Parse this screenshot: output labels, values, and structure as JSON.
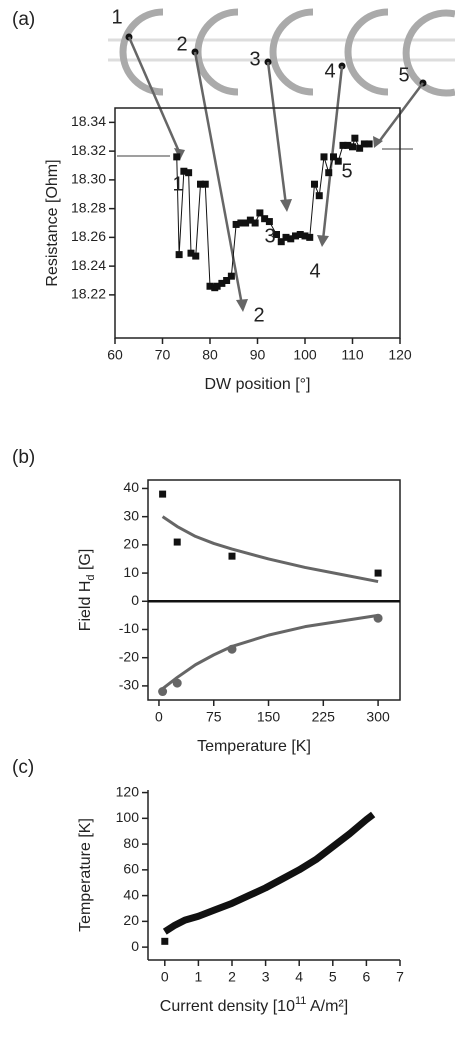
{
  "chart_data": [
    {
      "type": "scatter",
      "panel_label": "(a)",
      "xlabel": "DW position [°]",
      "ylabel": "Resistance [Ohm]",
      "xlim": [
        60,
        120
      ],
      "ylim": [
        18.19,
        18.35
      ],
      "box": true,
      "xticks": [
        60,
        70,
        80,
        90,
        100,
        110,
        120
      ],
      "yticks": [
        18.22,
        18.24,
        18.26,
        18.28,
        {
          "value": 18.3,
          "label": "18.30"
        },
        18.32,
        18.34
      ],
      "annotations": [
        "1",
        "2",
        "3",
        "4",
        "5"
      ],
      "icon_labels": [
        "1",
        "2",
        "3",
        "4",
        "5"
      ],
      "series": [
        {
          "color": "#111111",
          "marker": "square",
          "line": true,
          "x": [
            73,
            73.5,
            74.5,
            75.5,
            76,
            77,
            78,
            79,
            80,
            81,
            81.5,
            82.5,
            83.5,
            84.5,
            85.5,
            86.5,
            87.5,
            88.5,
            89.5,
            90.5,
            91.5,
            92.5,
            94,
            95,
            96,
            97,
            98,
            99,
            100,
            101,
            102,
            103,
            104,
            105,
            106,
            107,
            108,
            109,
            110,
            110.5,
            111.5,
            112.5,
            113.5
          ],
          "values": [
            18.316,
            18.248,
            18.306,
            18.305,
            18.249,
            18.247,
            18.297,
            18.297,
            18.226,
            18.225,
            18.226,
            18.228,
            18.23,
            18.233,
            18.269,
            18.27,
            18.27,
            18.272,
            18.27,
            18.277,
            18.273,
            18.271,
            18.262,
            18.257,
            18.26,
            18.259,
            18.261,
            18.262,
            18.261,
            18.26,
            18.297,
            18.289,
            18.316,
            18.305,
            18.316,
            18.313,
            18.324,
            18.324,
            18.323,
            18.329,
            18.322,
            18.325,
            18.325
          ]
        }
      ]
    },
    {
      "type": "scatter",
      "panel_label": "(b)",
      "xlabel": "Temperature [K]",
      "ylabel": "Field H",
      "ylabel_sub": "d",
      "ylabel_suffix": " [G]",
      "xlim": [
        -15,
        330
      ],
      "ylim": [
        -35,
        43
      ],
      "box": true,
      "zero_line": true,
      "xticks": [
        0,
        75,
        150,
        225,
        300
      ],
      "yticks": [
        -30,
        -20,
        -10,
        0,
        10,
        20,
        30,
        40
      ],
      "series": [
        {
          "color": "#111111",
          "marker": "square",
          "line": false,
          "x": [
            5,
            25,
            100,
            300
          ],
          "values": [
            38,
            21,
            16,
            10
          ]
        },
        {
          "color": "#666666",
          "marker": "circle",
          "line": false,
          "x": [
            5,
            25,
            100,
            300
          ],
          "values": [
            -32,
            -29,
            -17,
            -6
          ]
        },
        {
          "color": "#666666",
          "marker": "none",
          "line": true,
          "x": [
            5,
            25,
            50,
            75,
            100,
            150,
            200,
            250,
            300
          ],
          "values": [
            30,
            26.5,
            23,
            20.5,
            18.5,
            15,
            12,
            9.5,
            7
          ]
        },
        {
          "color": "#666666",
          "marker": "none",
          "line": true,
          "x": [
            5,
            25,
            50,
            75,
            100,
            150,
            200,
            250,
            300
          ],
          "values": [
            -31,
            -27,
            -22.5,
            -19,
            -16,
            -12,
            -9,
            -7,
            -5
          ]
        }
      ]
    },
    {
      "type": "scatter",
      "panel_label": "(c)",
      "xlabel": "Current density [10",
      "xlabel_sup": "11",
      "xlabel_suffix": " A/m²]",
      "ylabel": "Temperature [K]",
      "xlim": [
        -0.5,
        7
      ],
      "ylim": [
        -10,
        122
      ],
      "box": false,
      "xticks": [
        0,
        1,
        2,
        3,
        4,
        5,
        6,
        7
      ],
      "yticks": [
        0,
        20,
        40,
        60,
        80,
        100,
        120
      ],
      "series": [
        {
          "color": "#111111",
          "marker": "square",
          "line": false,
          "x": [
            0
          ],
          "values": [
            4.5
          ]
        },
        {
          "color": "#111111",
          "marker": "none",
          "line": true,
          "width": 7,
          "x": [
            0,
            0.3,
            0.6,
            1,
            1.5,
            2,
            2.5,
            3,
            3.5,
            4,
            4.5,
            5,
            5.5,
            6,
            6.2
          ],
          "values": [
            12,
            17,
            21,
            24,
            29,
            34,
            40,
            46,
            53,
            60,
            68,
            78,
            88,
            99,
            103
          ]
        }
      ]
    }
  ]
}
